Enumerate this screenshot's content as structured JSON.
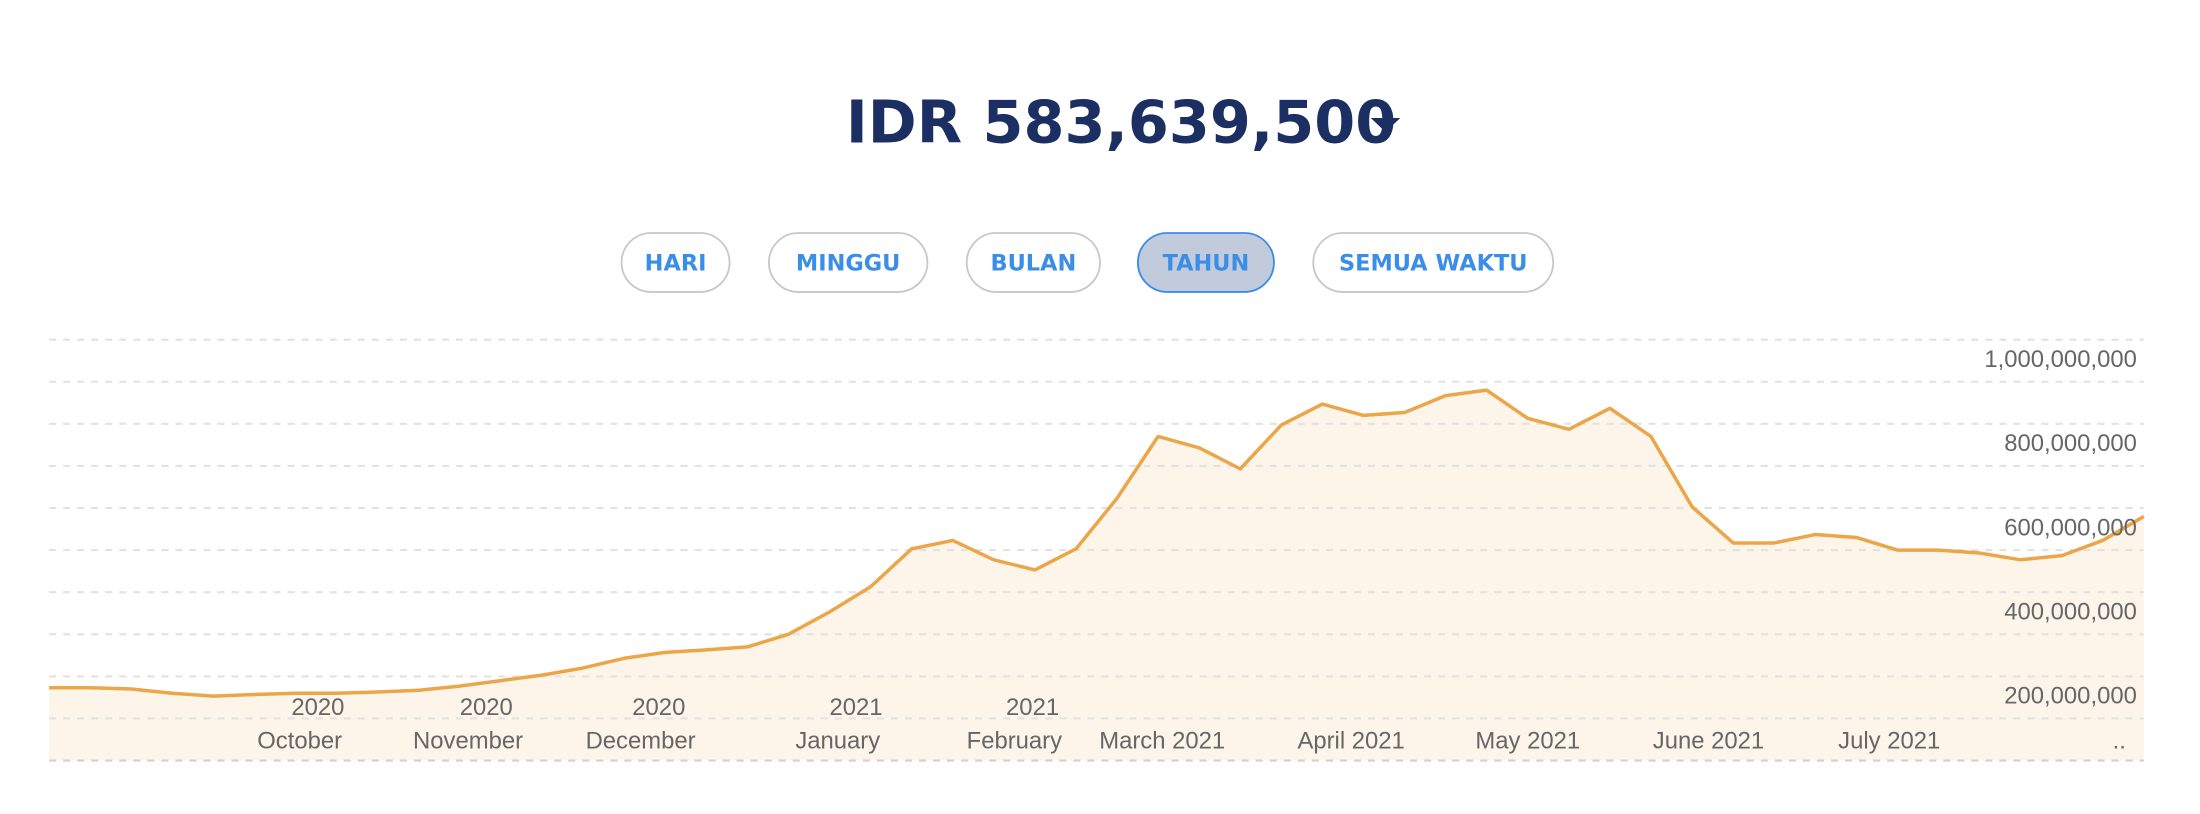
{
  "header": {
    "title": "IDR 583,639,500"
  },
  "buttons": [
    {
      "label": "HARI",
      "active": false
    },
    {
      "label": "MINGGU",
      "active": false
    },
    {
      "label": "BULAN",
      "active": false
    },
    {
      "label": "TAHUN",
      "active": true
    },
    {
      "label": "SEMUA WAKTU",
      "active": false
    }
  ],
  "chart_data": {
    "type": "area",
    "color": "#eba64a",
    "fill": "#fdf5e9",
    "values": [
      273000000,
      273000000,
      270000000,
      260000000,
      253000000,
      257000000,
      260000000,
      260000000,
      263000000,
      267000000,
      277000000,
      290000000,
      303000000,
      320000000,
      343000000,
      357000000,
      363000000,
      370000000,
      400000000,
      453000000,
      513000000,
      603000000,
      623000000,
      577000000,
      553000000,
      603000000,
      723000000,
      870000000,
      843000000,
      793000000,
      897000000,
      947000000,
      920000000,
      927000000,
      967000000,
      980000000,
      913000000,
      887000000,
      937000000,
      870000000,
      703000000,
      617000000,
      617000000,
      637000000,
      630000000,
      600000000,
      600000000,
      593000000,
      577000000,
      587000000,
      623000000,
      680000000
    ],
    "xlim": [
      0,
      51
    ],
    "xticks": [
      {
        "value": 6.1,
        "label": "October",
        "year": "2020"
      },
      {
        "value": 10.2,
        "label": "November",
        "year": "2020"
      },
      {
        "value": 14.4,
        "label": "December",
        "year": "2020"
      },
      {
        "value": 19.2,
        "label": "January",
        "year": "2021"
      },
      {
        "value": 23.5,
        "label": "February",
        "year": "2021"
      },
      {
        "value": 27.1,
        "label": "March 2021"
      },
      {
        "value": 31.7,
        "label": "April 2021"
      },
      {
        "value": 36.0,
        "label": "May 2021"
      },
      {
        "value": 40.4,
        "label": "June 2021"
      },
      {
        "value": 44.8,
        "label": "July 2021"
      },
      {
        "value": 50.4,
        "label": ".."
      }
    ],
    "ylim": [
      100000000,
      1100000000
    ],
    "yticks": [
      {
        "value": 200000000,
        "label": "200,000,000"
      },
      {
        "value": 400000000,
        "label": "400,000,000"
      },
      {
        "value": 600000000,
        "label": "600,000,000"
      },
      {
        "value": 800000000,
        "label": "800,000,000"
      },
      {
        "value": 1000000000,
        "label": "1,000,000,000"
      }
    ],
    "grid_lines": [
      100000000,
      200000000,
      300000000,
      400000000,
      500000000,
      600000000,
      700000000,
      800000000,
      900000000,
      1000000000,
      1100000000
    ],
    "grid": true
  }
}
